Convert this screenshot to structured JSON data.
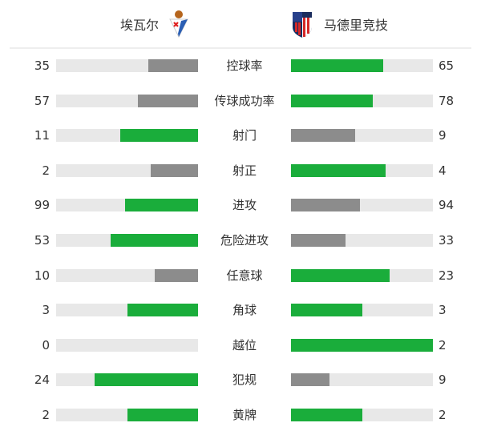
{
  "header": {
    "home_team": "埃瓦尔",
    "away_team": "马德里竞技",
    "home_logo_icon": "eibar-crest-icon",
    "away_logo_icon": "atletico-madrid-crest-icon"
  },
  "colors": {
    "leader": "#1aad3b",
    "trailer": "#8c8c8c",
    "track": "#e8e8e8"
  },
  "stats": [
    {
      "label": "控球率",
      "home": 35,
      "away": 65
    },
    {
      "label": "传球成功率",
      "home": 57,
      "away": 78
    },
    {
      "label": "射门",
      "home": 11,
      "away": 9
    },
    {
      "label": "射正",
      "home": 2,
      "away": 4
    },
    {
      "label": "进攻",
      "home": 99,
      "away": 94
    },
    {
      "label": "危险进攻",
      "home": 53,
      "away": 33
    },
    {
      "label": "任意球",
      "home": 10,
      "away": 23
    },
    {
      "label": "角球",
      "home": 3,
      "away": 3
    },
    {
      "label": "越位",
      "home": 0,
      "away": 2
    },
    {
      "label": "犯规",
      "home": 24,
      "away": 9
    },
    {
      "label": "黄牌",
      "home": 2,
      "away": 2
    }
  ]
}
